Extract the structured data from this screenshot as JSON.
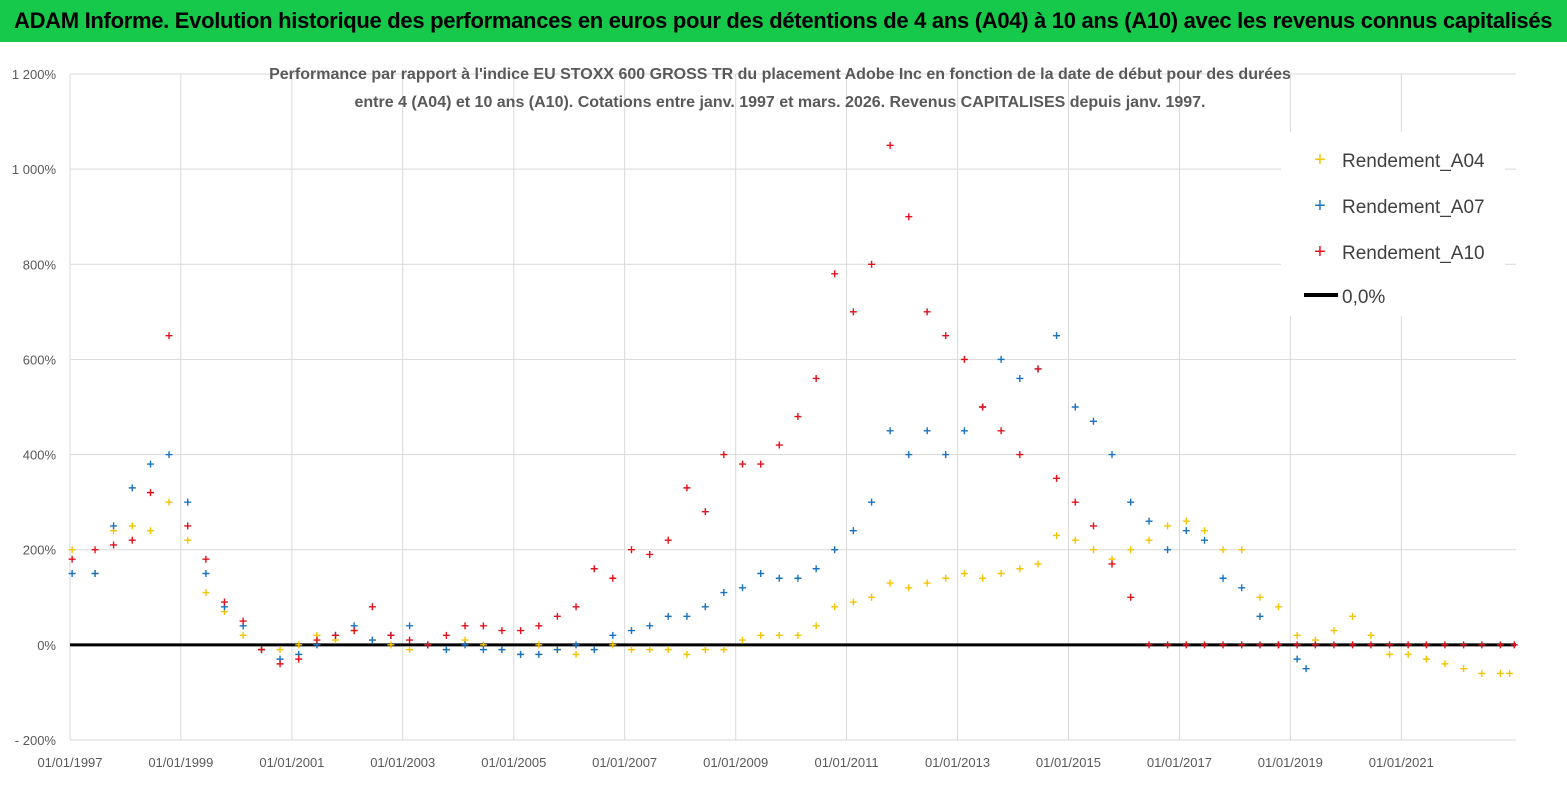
{
  "banner": {
    "title": "ADAM Informe. Evolution historique des performances en euros pour des détentions de 4 ans (A04) à 10 ans (A10) avec les revenus connus capitalisés"
  },
  "colors": {
    "banner_bg": "#16c94a",
    "A04": "#f5c400",
    "A07": "#1a73c1",
    "A10": "#e4101a",
    "zero": "#000000",
    "grid": "#d9d9d9"
  },
  "chart_data": {
    "type": "scatter",
    "title_lines": [
      "Performance par rapport à l'indice EU STOXX 600 GROSS TR  du placement Adobe Inc en fonction de la date de début pour des durées",
      "entre 4 (A04) et 10 ans (A10). Cotations entre janv. 1997 et mars. 2026. Revenus CAPITALISES depuis janv. 1997."
    ],
    "xlabel": "",
    "ylabel": "",
    "x_range": [
      "1997-01-01",
      "2023-01-26"
    ],
    "y_range": [
      -200,
      1200
    ],
    "y_ticks": [
      {
        "v": 1200,
        "label": "1 200%"
      },
      {
        "v": 1000,
        "label": "1 000%"
      },
      {
        "v": 800,
        "label": "800%"
      },
      {
        "v": 600,
        "label": "600%"
      },
      {
        "v": 400,
        "label": "400%"
      },
      {
        "v": 200,
        "label": "200%"
      },
      {
        "v": 0,
        "label": "0%"
      },
      {
        "v": -200,
        "label": "- 200%"
      }
    ],
    "x_ticks": [
      {
        "v": "1997-01-01",
        "label": "01/01/1997"
      },
      {
        "v": "1999-01-01",
        "label": "01/01/1999"
      },
      {
        "v": "2001-01-01",
        "label": "01/01/2001"
      },
      {
        "v": "2003-01-01",
        "label": "01/01/2003"
      },
      {
        "v": "2005-01-01",
        "label": "01/01/2005"
      },
      {
        "v": "2007-01-01",
        "label": "01/01/2007"
      },
      {
        "v": "2009-01-01",
        "label": "01/01/2009"
      },
      {
        "v": "2011-01-01",
        "label": "01/01/2011"
      },
      {
        "v": "2013-01-01",
        "label": "01/01/2013"
      },
      {
        "v": "2015-01-01",
        "label": "01/01/2015"
      },
      {
        "v": "2017-01-01",
        "label": "01/01/2017"
      },
      {
        "v": "2019-01-01",
        "label": "01/01/2019"
      },
      {
        "v": "2021-01-01",
        "label": "01/01/2021"
      }
    ],
    "grid": true,
    "legend_position": "top-right",
    "series": [
      {
        "name": "Rendement_A04",
        "marker": "+",
        "x": [
          "1997-01",
          "1997-06",
          "1997-10",
          "1998-02",
          "1998-06",
          "1998-10",
          "1999-02",
          "1999-06",
          "1999-10",
          "2000-02",
          "2000-06",
          "2000-10",
          "2001-02",
          "2001-06",
          "2001-10",
          "2002-02",
          "2002-06",
          "2002-10",
          "2003-02",
          "2003-06",
          "2003-10",
          "2004-02",
          "2004-06",
          "2004-10",
          "2005-02",
          "2005-06",
          "2005-10",
          "2006-02",
          "2006-06",
          "2006-10",
          "2007-02",
          "2007-06",
          "2007-10",
          "2008-02",
          "2008-06",
          "2008-10",
          "2009-02",
          "2009-06",
          "2009-10",
          "2010-02",
          "2010-06",
          "2010-10",
          "2011-02",
          "2011-06",
          "2011-10",
          "2012-02",
          "2012-06",
          "2012-10",
          "2013-02",
          "2013-06",
          "2013-10",
          "2014-02",
          "2014-06",
          "2014-10",
          "2015-02",
          "2015-06",
          "2015-10",
          "2016-02",
          "2016-06",
          "2016-10",
          "2017-02",
          "2017-06",
          "2017-10",
          "2018-02",
          "2018-06",
          "2018-10",
          "2019-02",
          "2019-06",
          "2019-10",
          "2020-02",
          "2020-06",
          "2020-10",
          "2021-02",
          "2021-06",
          "2021-10",
          "2022-02",
          "2022-06",
          "2022-10",
          "2022-12"
        ],
        "y": [
          200,
          150,
          240,
          250,
          240,
          300,
          220,
          110,
          70,
          20,
          -10,
          -10,
          0,
          20,
          10,
          30,
          10,
          0,
          -10,
          0,
          -10,
          10,
          0,
          -10,
          -20,
          0,
          -10,
          -20,
          -10,
          0,
          -10,
          -10,
          -10,
          -20,
          -10,
          -10,
          10,
          20,
          20,
          20,
          40,
          80,
          90,
          100,
          130,
          120,
          130,
          140,
          150,
          140,
          150,
          160,
          170,
          230,
          220,
          200,
          180,
          200,
          220,
          250,
          260,
          240,
          200,
          200,
          100,
          80,
          20,
          10,
          30,
          60,
          20,
          -20,
          -20,
          -30,
          -40,
          -50,
          -60,
          -60,
          -60
        ]
      },
      {
        "name": "Rendement_A07",
        "marker": "+",
        "x": [
          "1997-01",
          "1997-06",
          "1997-10",
          "1998-02",
          "1998-06",
          "1998-10",
          "1999-02",
          "1999-06",
          "1999-10",
          "2000-02",
          "2000-06",
          "2000-10",
          "2001-02",
          "2001-06",
          "2001-10",
          "2002-02",
          "2002-06",
          "2002-10",
          "2003-02",
          "2003-06",
          "2003-10",
          "2004-02",
          "2004-06",
          "2004-10",
          "2005-02",
          "2005-06",
          "2005-10",
          "2006-02",
          "2006-06",
          "2006-10",
          "2007-02",
          "2007-06",
          "2007-10",
          "2008-02",
          "2008-06",
          "2008-10",
          "2009-02",
          "2009-06",
          "2009-10",
          "2010-02",
          "2010-06",
          "2010-10",
          "2011-02",
          "2011-06",
          "2011-10",
          "2012-02",
          "2012-06",
          "2012-10",
          "2013-02",
          "2013-06",
          "2013-10",
          "2014-02",
          "2014-06",
          "2014-10",
          "2015-02",
          "2015-06",
          "2015-10",
          "2016-02",
          "2016-06",
          "2016-10",
          "2017-02",
          "2017-06",
          "2017-10",
          "2018-02",
          "2018-06",
          "2018-10",
          "2019-02",
          "2019-04"
        ],
        "y": [
          150,
          150,
          250,
          330,
          380,
          400,
          300,
          150,
          80,
          40,
          -10,
          -30,
          -20,
          0,
          20,
          40,
          10,
          20,
          40,
          0,
          -10,
          0,
          -10,
          -10,
          -20,
          -20,
          -10,
          0,
          -10,
          20,
          30,
          40,
          60,
          60,
          80,
          110,
          120,
          150,
          140,
          140,
          160,
          200,
          240,
          300,
          450,
          400,
          450,
          400,
          450,
          500,
          600,
          560,
          580,
          650,
          500,
          470,
          400,
          300,
          260,
          200,
          240,
          220,
          140,
          120,
          60,
          0,
          -30,
          -50
        ]
      },
      {
        "name": "Rendement_A10",
        "marker": "+",
        "x": [
          "1997-01",
          "1997-06",
          "1997-10",
          "1998-02",
          "1998-06",
          "1998-10",
          "1999-02",
          "1999-06",
          "1999-10",
          "2000-02",
          "2000-06",
          "2000-10",
          "2001-02",
          "2001-06",
          "2001-10",
          "2002-02",
          "2002-06",
          "2002-10",
          "2003-02",
          "2003-06",
          "2003-10",
          "2004-02",
          "2004-06",
          "2004-10",
          "2005-02",
          "2005-06",
          "2005-10",
          "2006-02",
          "2006-06",
          "2006-10",
          "2007-02",
          "2007-06",
          "2007-10",
          "2008-02",
          "2008-06",
          "2008-10",
          "2009-02",
          "2009-06",
          "2009-10",
          "2010-02",
          "2010-06",
          "2010-10",
          "2011-02",
          "2011-06",
          "2011-10",
          "2012-02",
          "2012-06",
          "2012-10",
          "2013-02",
          "2013-06",
          "2013-10",
          "2014-02",
          "2014-06",
          "2014-10",
          "2015-02",
          "2015-06",
          "2015-10",
          "2016-02",
          "2016-06",
          "2016-10",
          "2017-02",
          "2017-06",
          "2017-10",
          "2018-02",
          "2018-06",
          "2018-10",
          "2019-02",
          "2019-06",
          "2019-10",
          "2020-02",
          "2020-06",
          "2020-10",
          "2021-02",
          "2021-06",
          "2021-10",
          "2022-02",
          "2022-06",
          "2022-10",
          "2023-01"
        ],
        "y": [
          180,
          200,
          210,
          220,
          320,
          650,
          250,
          180,
          90,
          50,
          -10,
          -40,
          -30,
          10,
          20,
          30,
          80,
          20,
          10,
          0,
          20,
          40,
          40,
          30,
          30,
          40,
          60,
          80,
          160,
          140,
          200,
          190,
          220,
          330,
          280,
          400,
          380,
          380,
          420,
          480,
          560,
          780,
          700,
          800,
          1050,
          900,
          700,
          650,
          600,
          500,
          450,
          400,
          580,
          350,
          300,
          250,
          170,
          100,
          0,
          0,
          0,
          0,
          0,
          0,
          0,
          0,
          0,
          0,
          0,
          0,
          0,
          0,
          0,
          0,
          0,
          0,
          0,
          0,
          0
        ]
      }
    ],
    "legend": [
      {
        "name": "Rendement_A04",
        "marker": "+",
        "color": "#f5c400"
      },
      {
        "name": "Rendement_A07",
        "marker": "+",
        "color": "#1a73c1"
      },
      {
        "name": "Rendement_A10",
        "marker": "+",
        "color": "#e4101a"
      },
      {
        "name": "0,0%",
        "marker": "line",
        "color": "#000000"
      }
    ],
    "reference_line": {
      "name": "0,0%",
      "y": 0
    }
  }
}
